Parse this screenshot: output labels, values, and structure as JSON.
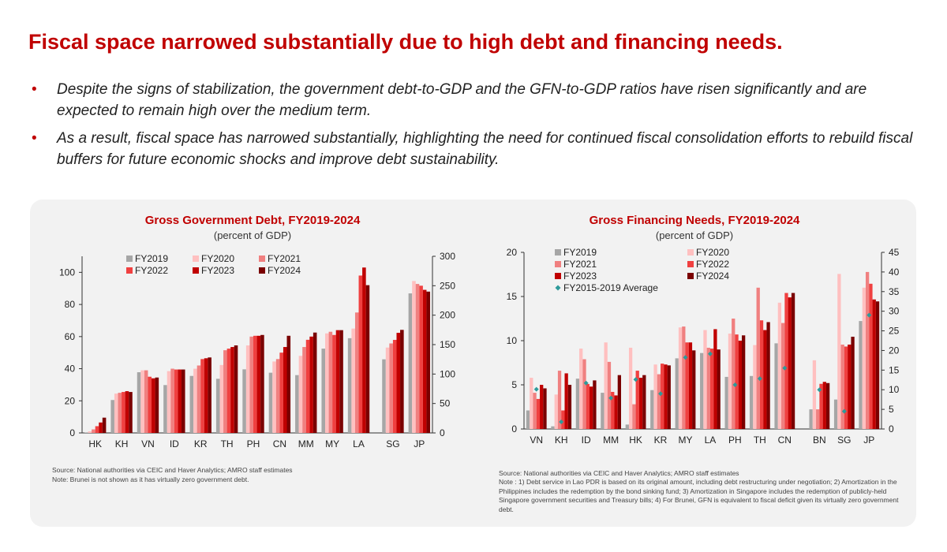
{
  "title": "Fiscal space narrowed substantially due to high debt and financing needs.",
  "bullets": [
    "Despite the signs of stabilization, the government debt-to-GDP and the GFN-to-GDP ratios have risen significantly and are expected to remain high over the medium term.",
    "As a result, fiscal space has narrowed substantially, highlighting the need for continued fiscal consolidation efforts to rebuild fiscal buffers for future economic shocks and improve debt sustainability."
  ],
  "bullet_symbol": "•",
  "colors": {
    "title": "#c00000",
    "panel": "#f2f2f2"
  },
  "chart_data": [
    {
      "type": "bar",
      "title": "Gross Government Debt, FY2019-2024",
      "subtitle": "(percent of GDP)",
      "categories": [
        "HK",
        "KH",
        "VN",
        "ID",
        "KR",
        "TH",
        "PH",
        "CN",
        "MM",
        "MY",
        "LA",
        "SG",
        "JP"
      ],
      "y_left": {
        "range": [
          0,
          110
        ],
        "ticks": [
          0,
          20,
          40,
          60,
          80,
          100
        ]
      },
      "y_right": {
        "range": [
          0,
          300
        ],
        "ticks": [
          0,
          50,
          100,
          150,
          200,
          250,
          300
        ]
      },
      "right_axis_categories": [
        "SG",
        "JP"
      ],
      "legend_placement": "top-center",
      "series": [
        {
          "name": "FY2019",
          "color": "#a6a6a6",
          "values": [
            0.3,
            20.5,
            37.8,
            29.8,
            35.5,
            33.7,
            39.6,
            37.5,
            36,
            52.5,
            59,
            125,
            237
          ]
        },
        {
          "name": "FY2020",
          "color": "#ffc0c0",
          "values": [
            1,
            24.5,
            39,
            38.5,
            40,
            42.3,
            54.5,
            44.5,
            48,
            62,
            65,
            145,
            258
          ]
        },
        {
          "name": "FY2021",
          "color": "#f08080",
          "values": [
            2.2,
            25,
            39,
            40,
            42,
            51.5,
            60,
            46,
            53.5,
            63,
            75,
            152,
            253
          ]
        },
        {
          "name": "FY2022",
          "color": "#f04040",
          "values": [
            4.2,
            25.5,
            35,
            39.5,
            46,
            52.5,
            60.5,
            50,
            58,
            61,
            98,
            158,
            250
          ]
        },
        {
          "name": "FY2023",
          "color": "#c00000",
          "values": [
            6.5,
            26,
            34,
            39.5,
            46.5,
            53.5,
            60.5,
            53.5,
            60,
            64,
            103,
            170,
            243
          ]
        },
        {
          "name": "FY2024",
          "color": "#7a0000",
          "values": [
            9.5,
            25.5,
            34.5,
            39.5,
            47,
            54.5,
            61,
            60.5,
            62.5,
            64,
            92,
            175,
            240
          ]
        }
      ],
      "source": "Source: National authorities via CEIC and Haver Analytics; AMRO staff estimates",
      "note": "Note: Brunei is not shown as it has virtually zero government debt."
    },
    {
      "type": "bar",
      "title": "Gross Financing Needs, FY2019-2024",
      "subtitle": "(percent of GDP)",
      "categories": [
        "VN",
        "KH",
        "ID",
        "MM",
        "HK",
        "KR",
        "MY",
        "LA",
        "PH",
        "TH",
        "CN",
        "BN",
        "SG",
        "JP"
      ],
      "y_left": {
        "range": [
          0,
          20
        ],
        "ticks": [
          0,
          5,
          10,
          15,
          20
        ]
      },
      "y_right": {
        "range": [
          0,
          45
        ],
        "ticks": [
          0,
          5,
          10,
          15,
          20,
          25,
          30,
          35,
          40,
          45
        ]
      },
      "right_axis_categories": [
        "BN",
        "SG",
        "JP"
      ],
      "legend_placement": "top-left",
      "series": [
        {
          "name": "FY2019",
          "color": "#a6a6a6",
          "values": [
            2.1,
            0.3,
            5.7,
            4.1,
            0.5,
            4.4,
            8,
            8.6,
            5.9,
            6,
            9.7,
            5,
            7.5,
            27.5
          ]
        },
        {
          "name": "FY2020",
          "color": "#ffc0c0",
          "values": [
            5.8,
            3.9,
            9.1,
            9.8,
            9.2,
            7.3,
            11.5,
            11.2,
            10.8,
            9.5,
            14.3,
            17.5,
            39.5,
            36
          ]
        },
        {
          "name": "FY2021",
          "color": "#f08080",
          "values": [
            4.1,
            6.6,
            7.9,
            7.6,
            2.8,
            6.2,
            11.6,
            9.2,
            12.5,
            16,
            12,
            5,
            21.5,
            40
          ]
        },
        {
          "name": "FY2022",
          "color": "#f04040",
          "values": [
            3.4,
            2.1,
            5.1,
            4.2,
            6.6,
            7.4,
            9.8,
            9.1,
            10.7,
            12.3,
            15.4,
            11.5,
            21,
            37
          ]
        },
        {
          "name": "FY2023",
          "color": "#c00000",
          "values": [
            5,
            6.3,
            4.8,
            3.8,
            5.8,
            7.3,
            9.8,
            11.3,
            10,
            11.2,
            14.9,
            12,
            21.5,
            33
          ]
        },
        {
          "name": "FY2024",
          "color": "#7a0000",
          "values": [
            4.6,
            5,
            5.5,
            6.1,
            6.1,
            7.2,
            8.9,
            9,
            10.6,
            12.1,
            15.4,
            11.7,
            23.5,
            32.5
          ]
        }
      ],
      "average": {
        "name": "FY2015-2019 Average",
        "color": "#2e9a9a",
        "values": [
          4.5,
          0.8,
          5.2,
          3.5,
          5.6,
          4,
          8.1,
          8.5,
          5,
          5.7,
          6.9,
          10,
          4.5,
          29
        ]
      },
      "source": "Source: National authorities via CEIC and Haver Analytics; AMRO staff estimates",
      "note": "Note : 1) Debt service in Lao PDR is based on its original amount, including debt restructuring under negotiation; 2) Amortization in the Philippines includes the redemption by the bond sinking fund; 3) Amortization in Singapore includes the redemption of publicly-held Singapore government securities and Treasury bills; 4) For Brunei, GFN is equivalent to fiscal deficit given its virtually zero government debt."
    }
  ]
}
